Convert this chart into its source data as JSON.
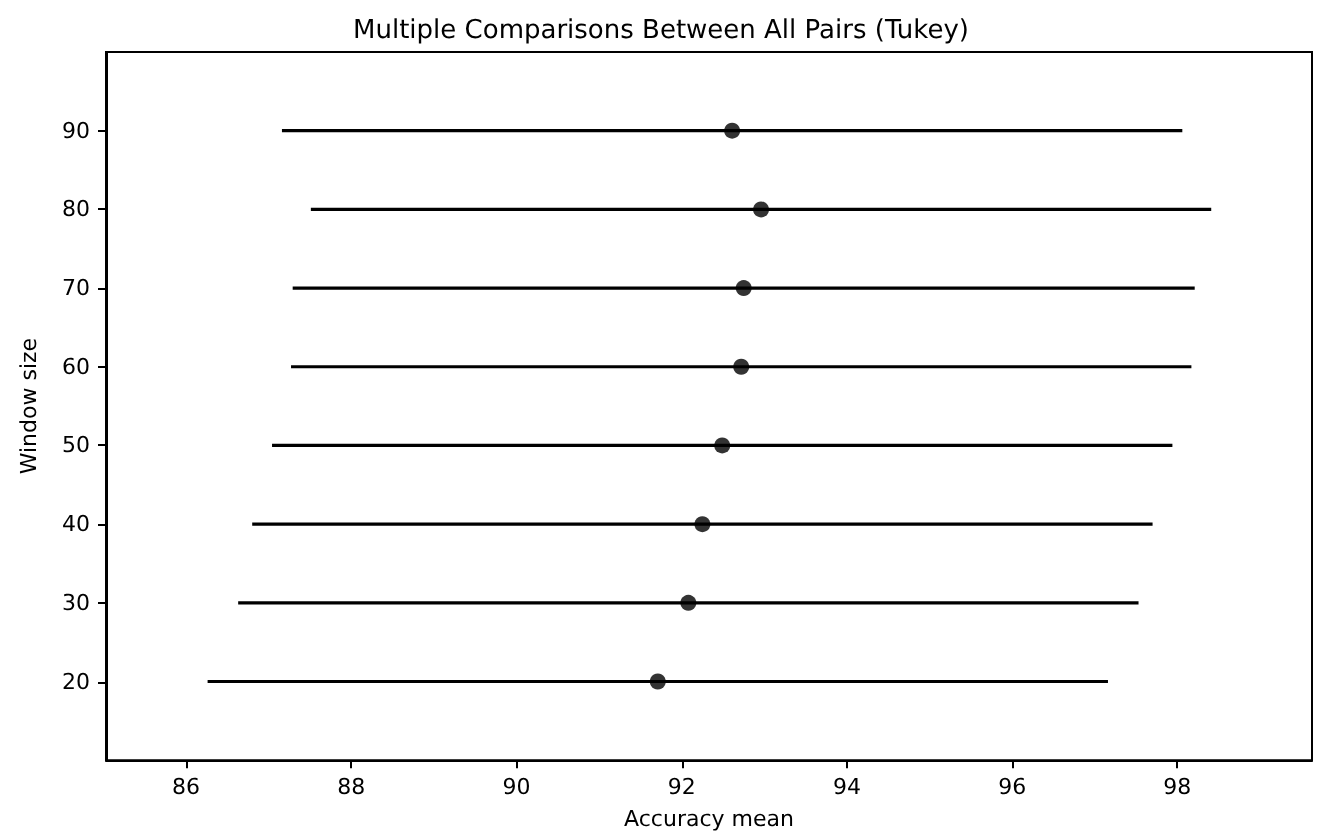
{
  "chart_data": {
    "type": "scatter",
    "title": "Multiple Comparisons Between All Pairs (Tukey)",
    "xlabel": "Accuracy mean",
    "ylabel": "Window size",
    "x": [
      92.61,
      92.96,
      92.75,
      92.72,
      92.49,
      92.25,
      92.08,
      91.71
    ],
    "series": [
      {
        "color": "#000000",
        "values": [
          90,
          80,
          70,
          60,
          50,
          40,
          30,
          20
        ],
        "xerrors": [
          5.45,
          5.45,
          5.46,
          5.45,
          5.45,
          5.45,
          5.45,
          5.45
        ]
      }
    ],
    "xlim": [
      85.03,
      99.63
    ],
    "xticks": [
      86,
      88,
      90,
      92,
      94,
      96,
      98
    ],
    "ylim": [
      10,
      100
    ],
    "yticks": [
      20,
      30,
      40,
      50,
      60,
      70,
      80,
      90
    ],
    "marker": "circle"
  }
}
